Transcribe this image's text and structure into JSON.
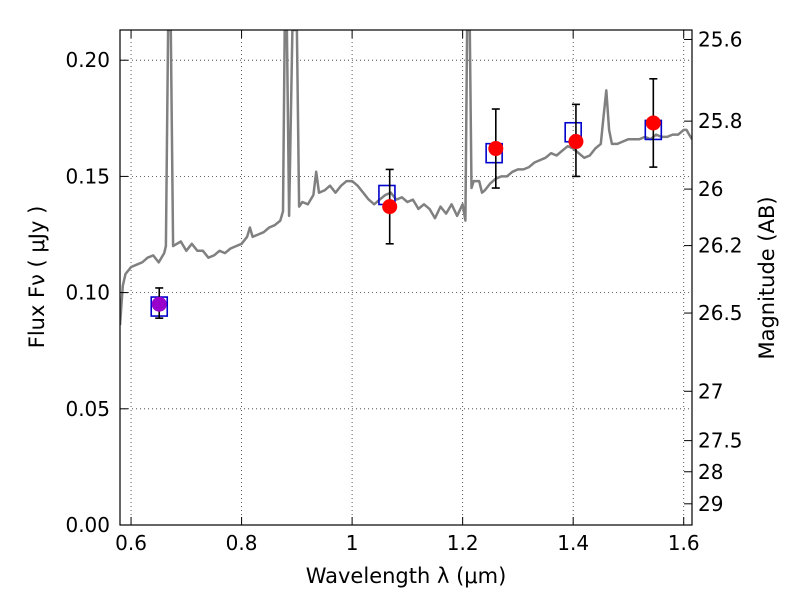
{
  "chart_data": {
    "type": "scatter",
    "title": "",
    "xlabel": "Wavelength  λ (μm)",
    "ylabel": "Flux  Fν  ( μJy )",
    "ylabel_right": "Magnitude (AB)",
    "xlim": [
      0.58,
      1.615
    ],
    "ylim": [
      0.0,
      0.213
    ],
    "grid": true,
    "x_ticks": [
      0.6,
      0.8,
      1.0,
      1.2,
      1.4,
      1.6
    ],
    "x_tick_labels": [
      "0.6",
      "0.8",
      "1",
      "1.2",
      "1.4",
      "1.6"
    ],
    "y_ticks": [
      0.0,
      0.05,
      0.1,
      0.15,
      0.2
    ],
    "y_tick_labels": [
      "0.00",
      "0.05",
      "0.10",
      "0.15",
      "0.20"
    ],
    "right_ticks": [
      {
        "mag": 25.6,
        "label": "25.6"
      },
      {
        "mag": 25.8,
        "label": "25.8"
      },
      {
        "mag": 26.0,
        "label": "26"
      },
      {
        "mag": 26.2,
        "label": "26.2"
      },
      {
        "mag": 26.5,
        "label": "26.5"
      },
      {
        "mag": 27.0,
        "label": "27"
      },
      {
        "mag": 27.5,
        "label": "27.5"
      },
      {
        "mag": 28.0,
        "label": "28"
      },
      {
        "mag": 29.0,
        "label": "29"
      }
    ],
    "series": [
      {
        "kind": "line",
        "color": "#808080",
        "points": [
          [
            0.58,
            0.086
          ],
          [
            0.585,
            0.103
          ],
          [
            0.59,
            0.108
          ],
          [
            0.6,
            0.111
          ],
          [
            0.61,
            0.112
          ],
          [
            0.62,
            0.113
          ],
          [
            0.63,
            0.115
          ],
          [
            0.64,
            0.116
          ],
          [
            0.65,
            0.113
          ],
          [
            0.66,
            0.117
          ],
          [
            0.663,
            0.12
          ],
          [
            0.667,
            0.213
          ],
          [
            0.672,
            0.213
          ],
          [
            0.676,
            0.12
          ],
          [
            0.69,
            0.122
          ],
          [
            0.7,
            0.118
          ],
          [
            0.71,
            0.121
          ],
          [
            0.72,
            0.118
          ],
          [
            0.73,
            0.118
          ],
          [
            0.74,
            0.115
          ],
          [
            0.75,
            0.116
          ],
          [
            0.76,
            0.118
          ],
          [
            0.77,
            0.117
          ],
          [
            0.78,
            0.119
          ],
          [
            0.79,
            0.12
          ],
          [
            0.8,
            0.121
          ],
          [
            0.81,
            0.124
          ],
          [
            0.815,
            0.128
          ],
          [
            0.82,
            0.124
          ],
          [
            0.83,
            0.125
          ],
          [
            0.84,
            0.126
          ],
          [
            0.85,
            0.128
          ],
          [
            0.86,
            0.129
          ],
          [
            0.87,
            0.131
          ],
          [
            0.875,
            0.135
          ],
          [
            0.878,
            0.213
          ],
          [
            0.882,
            0.213
          ],
          [
            0.886,
            0.133
          ],
          [
            0.892,
            0.213
          ],
          [
            0.897,
            0.213
          ],
          [
            0.9,
            0.213
          ],
          [
            0.904,
            0.137
          ],
          [
            0.91,
            0.139
          ],
          [
            0.92,
            0.138
          ],
          [
            0.93,
            0.142
          ],
          [
            0.935,
            0.152
          ],
          [
            0.94,
            0.143
          ],
          [
            0.95,
            0.144
          ],
          [
            0.96,
            0.146
          ],
          [
            0.97,
            0.143
          ],
          [
            0.98,
            0.146
          ],
          [
            0.99,
            0.148
          ],
          [
            1.0,
            0.148
          ],
          [
            1.01,
            0.146
          ],
          [
            1.02,
            0.143
          ],
          [
            1.03,
            0.14
          ],
          [
            1.04,
            0.138
          ],
          [
            1.05,
            0.14
          ],
          [
            1.06,
            0.142
          ],
          [
            1.07,
            0.143
          ],
          [
            1.08,
            0.14
          ],
          [
            1.09,
            0.141
          ],
          [
            1.1,
            0.139
          ],
          [
            1.11,
            0.14
          ],
          [
            1.12,
            0.136
          ],
          [
            1.13,
            0.138
          ],
          [
            1.14,
            0.136
          ],
          [
            1.15,
            0.132
          ],
          [
            1.16,
            0.137
          ],
          [
            1.17,
            0.134
          ],
          [
            1.18,
            0.138
          ],
          [
            1.19,
            0.133
          ],
          [
            1.2,
            0.138
          ],
          [
            1.205,
            0.131
          ],
          [
            1.208,
            0.213
          ],
          [
            1.213,
            0.213
          ],
          [
            1.216,
            0.145
          ],
          [
            1.22,
            0.148
          ],
          [
            1.23,
            0.148
          ],
          [
            1.235,
            0.143
          ],
          [
            1.24,
            0.144
          ],
          [
            1.25,
            0.147
          ],
          [
            1.26,
            0.149
          ],
          [
            1.27,
            0.15
          ],
          [
            1.28,
            0.15
          ],
          [
            1.29,
            0.152
          ],
          [
            1.3,
            0.153
          ],
          [
            1.31,
            0.153
          ],
          [
            1.32,
            0.154
          ],
          [
            1.33,
            0.156
          ],
          [
            1.34,
            0.157
          ],
          [
            1.35,
            0.158
          ],
          [
            1.36,
            0.16
          ],
          [
            1.37,
            0.159
          ],
          [
            1.38,
            0.161
          ],
          [
            1.39,
            0.163
          ],
          [
            1.4,
            0.162
          ],
          [
            1.41,
            0.16
          ],
          [
            1.42,
            0.158
          ],
          [
            1.43,
            0.159
          ],
          [
            1.44,
            0.162
          ],
          [
            1.45,
            0.164
          ],
          [
            1.455,
            0.176
          ],
          [
            1.46,
            0.187
          ],
          [
            1.465,
            0.17
          ],
          [
            1.47,
            0.164
          ],
          [
            1.48,
            0.164
          ],
          [
            1.49,
            0.165
          ],
          [
            1.5,
            0.166
          ],
          [
            1.51,
            0.166
          ],
          [
            1.52,
            0.166
          ],
          [
            1.53,
            0.167
          ],
          [
            1.54,
            0.166
          ],
          [
            1.55,
            0.168
          ],
          [
            1.56,
            0.167
          ],
          [
            1.57,
            0.167
          ],
          [
            1.58,
            0.168
          ],
          [
            1.59,
            0.168
          ],
          [
            1.6,
            0.17
          ],
          [
            1.605,
            0.17
          ],
          [
            1.61,
            0.168
          ],
          [
            1.615,
            0.166
          ]
        ]
      },
      {
        "kind": "squares",
        "color": "#0000cc",
        "points": [
          [
            0.651,
            0.094
          ],
          [
            1.063,
            0.142
          ],
          [
            1.257,
            0.16
          ],
          [
            1.4,
            0.169
          ],
          [
            1.545,
            0.17
          ]
        ]
      },
      {
        "kind": "circles",
        "color": "#ff0000",
        "points": [
          {
            "x": 0.651,
            "y": 0.095,
            "lo": 0.089,
            "hi": 0.102,
            "color": "#9900cc"
          },
          {
            "x": 1.068,
            "y": 0.137,
            "lo": 0.121,
            "hi": 0.153,
            "color": "#ff0000"
          },
          {
            "x": 1.26,
            "y": 0.162,
            "lo": 0.145,
            "hi": 0.179,
            "color": "#ff0000"
          },
          {
            "x": 1.405,
            "y": 0.165,
            "lo": 0.15,
            "hi": 0.181,
            "color": "#ff0000"
          },
          {
            "x": 1.545,
            "y": 0.173,
            "lo": 0.154,
            "hi": 0.192,
            "color": "#ff0000"
          }
        ]
      }
    ]
  }
}
